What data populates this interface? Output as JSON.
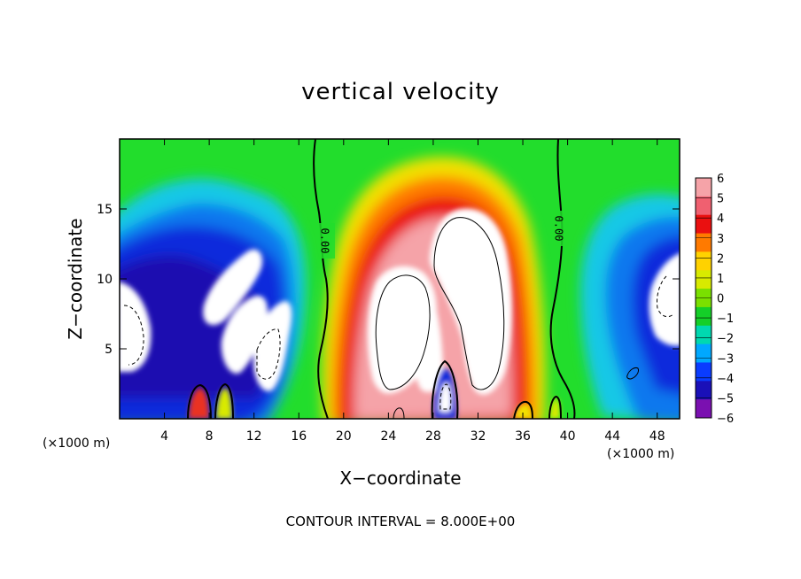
{
  "chart_data": {
    "type": "heatmap",
    "title": "vertical velocity",
    "xlabel": "X−coordinate",
    "ylabel": "Z−coordinate",
    "x_unit_left": "(×1000 m)",
    "x_unit_right": "(×1000 m)",
    "xlim": [
      0,
      50
    ],
    "ylim": [
      0,
      20
    ],
    "x_ticks": [
      4,
      8,
      12,
      16,
      20,
      24,
      28,
      32,
      36,
      40,
      44,
      48
    ],
    "y_ticks": [
      5,
      10,
      15
    ],
    "colorbar": {
      "min": -6,
      "max": 6,
      "labels": [
        "6",
        "5",
        "4",
        "3",
        "2",
        "1",
        "0",
        "−1",
        "−2",
        "−3",
        "−4",
        "−5",
        "−6"
      ],
      "colors": [
        "#f5a3a8",
        "#f06070",
        "#ea1010",
        "#ff7a00",
        "#ffd200",
        "#d8ea00",
        "#7ae000",
        "#14cf28",
        "#00d8b0",
        "#00a8ff",
        "#0a3cff",
        "#1a10b8",
        "#7a10b0"
      ],
      "saturation_color": "#ffffff"
    },
    "contour_label": "0.00",
    "contour_interval_text": "CONTOUR INTERVAL = 8.000E+00"
  }
}
